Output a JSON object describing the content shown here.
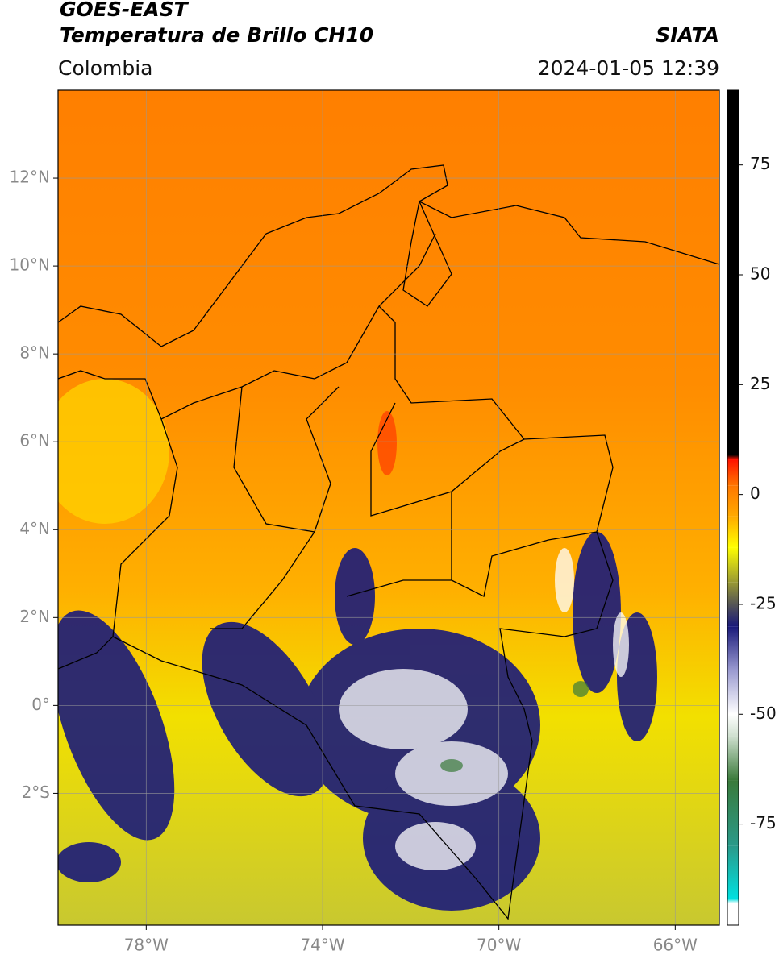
{
  "header": {
    "title": "GOES-EAST",
    "subtitle": "Temperatura de Brillo CH10",
    "source": "SIATA",
    "region": "Colombia",
    "datetime": "2024-01-05 12:39"
  },
  "map": {
    "xlim": [
      -80,
      -65
    ],
    "ylim": [
      -5,
      14
    ],
    "xticks": [
      {
        "value": -78,
        "label": "78°W"
      },
      {
        "value": -74,
        "label": "74°W"
      },
      {
        "value": -70,
        "label": "70°W"
      },
      {
        "value": -66,
        "label": "66°W"
      }
    ],
    "yticks": [
      {
        "value": 12,
        "label": "12°N"
      },
      {
        "value": 10,
        "label": "10°N"
      },
      {
        "value": 8,
        "label": "8°N"
      },
      {
        "value": 6,
        "label": "6°N"
      },
      {
        "value": 4,
        "label": "4°N"
      },
      {
        "value": 2,
        "label": "2°N"
      },
      {
        "value": 0,
        "label": "0°"
      },
      {
        "value": -2,
        "label": "2°S"
      }
    ],
    "grid": true
  },
  "colorbar": {
    "lim": [
      -98,
      92
    ],
    "ticks": [
      75,
      50,
      25,
      0,
      -25,
      -50,
      -75
    ],
    "stops": [
      {
        "value": -98,
        "color": "#ffffff"
      },
      {
        "value": -93,
        "color": "#ffffff"
      },
      {
        "value": -92,
        "color": "#00e0e0"
      },
      {
        "value": -80,
        "color": "#2a9a8a"
      },
      {
        "value": -65,
        "color": "#3a7a3a"
      },
      {
        "value": -55,
        "color": "#cfe0cf"
      },
      {
        "value": -50,
        "color": "#ffffff"
      },
      {
        "value": -40,
        "color": "#9a9ad0"
      },
      {
        "value": -30,
        "color": "#1a1a7a"
      },
      {
        "value": -25,
        "color": "#555555"
      },
      {
        "value": -20,
        "color": "#999933"
      },
      {
        "value": -12,
        "color": "#ffff00"
      },
      {
        "value": -5,
        "color": "#ffaa00"
      },
      {
        "value": 2,
        "color": "#ff7700"
      },
      {
        "value": 8,
        "color": "#ff1100"
      },
      {
        "value": 9,
        "color": "#000000"
      },
      {
        "value": 92,
        "color": "#000000"
      }
    ]
  }
}
